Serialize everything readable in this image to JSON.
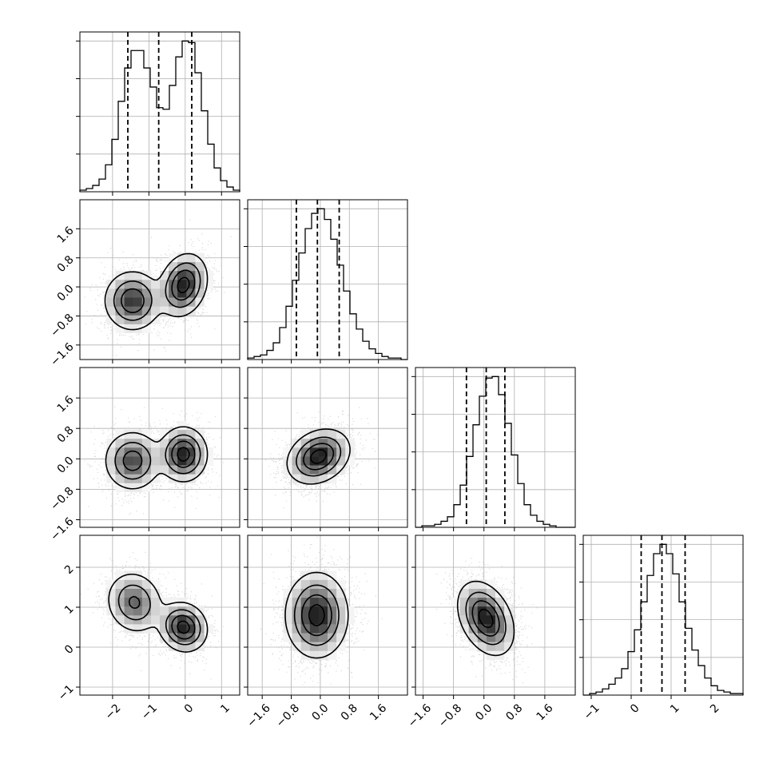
{
  "chart_data": {
    "type": "corner",
    "grid": true,
    "params": [
      {
        "range": [
          -2.9,
          1.5
        ],
        "ticks": [
          -2,
          -1,
          0,
          1
        ],
        "tick_labels": [
          "−2",
          "−1",
          "0",
          "1"
        ]
      },
      {
        "range": [
          -2.0,
          2.4
        ],
        "ticks": [
          -1.6,
          -0.8,
          0.0,
          0.8,
          1.6
        ],
        "tick_labels": [
          "−1.6",
          "−0.8",
          "0.0",
          "0.8",
          "1.6"
        ]
      },
      {
        "range": [
          -1.8,
          2.4
        ],
        "ticks": [
          -1.6,
          -0.8,
          0.0,
          0.8,
          1.6
        ],
        "tick_labels": [
          "−1.6",
          "−0.8",
          "0.0",
          "0.8",
          "1.6"
        ]
      },
      {
        "range": [
          -1.2,
          2.8
        ],
        "ticks": [
          -1,
          0,
          1,
          2
        ],
        "tick_labels": [
          "−1",
          "0",
          "1",
          "2"
        ]
      }
    ],
    "histograms": [
      {
        "quantiles": [
          -1.58,
          -0.73,
          0.18
        ],
        "counts": [
          1,
          2,
          4,
          8,
          17,
          33,
          57,
          78,
          89,
          89,
          78,
          66,
          53,
          52,
          67,
          85,
          95,
          94,
          75,
          51,
          30,
          15,
          7,
          3,
          1
        ]
      },
      {
        "quantiles": [
          -0.66,
          -0.08,
          0.52
        ],
        "counts": [
          1,
          2,
          3,
          6,
          11,
          21,
          35,
          52,
          70,
          86,
          96,
          99,
          92,
          79,
          62,
          45,
          30,
          20,
          12,
          7,
          4,
          2,
          1,
          1,
          0
        ]
      },
      {
        "quantiles": [
          -0.46,
          0.06,
          0.55
        ],
        "counts": [
          0,
          1,
          1,
          2,
          4,
          7,
          15,
          28,
          47,
          68,
          87,
          99,
          100,
          88,
          69,
          48,
          29,
          15,
          8,
          4,
          2,
          1,
          0,
          0,
          0
        ]
      },
      {
        "quantiles": [
          0.25,
          0.77,
          1.35
        ],
        "counts": [
          0,
          1,
          2,
          4,
          7,
          11,
          17,
          28,
          42,
          60,
          77,
          91,
          97,
          91,
          78,
          60,
          43,
          29,
          19,
          11,
          6,
          3,
          2,
          1,
          1
        ]
      }
    ],
    "pairs": [
      {
        "x": 0,
        "y": 1,
        "components": [
          {
            "w": 0.5,
            "mx": -1.45,
            "my": -0.38,
            "sx": 0.38,
            "sy": 0.4,
            "rho": 0.0
          },
          {
            "w": 0.5,
            "mx": -0.05,
            "my": 0.05,
            "sx": 0.32,
            "sy": 0.42,
            "rho": 0.2
          }
        ]
      },
      {
        "x": 0,
        "y": 2,
        "components": [
          {
            "w": 0.5,
            "mx": -1.45,
            "my": -0.05,
            "sx": 0.38,
            "sy": 0.38,
            "rho": 0.0
          },
          {
            "w": 0.5,
            "mx": -0.05,
            "my": 0.12,
            "sx": 0.32,
            "sy": 0.35,
            "rho": 0.0
          }
        ]
      },
      {
        "x": 1,
        "y": 2,
        "components": [
          {
            "w": 1.0,
            "mx": -0.05,
            "my": 0.06,
            "sx": 0.42,
            "sy": 0.35,
            "rho": 0.25
          }
        ]
      },
      {
        "x": 0,
        "y": 3,
        "components": [
          {
            "w": 0.5,
            "mx": -1.4,
            "my": 1.12,
            "sx": 0.38,
            "sy": 0.38,
            "rho": -0.1
          },
          {
            "w": 0.5,
            "mx": -0.05,
            "my": 0.5,
            "sx": 0.32,
            "sy": 0.3,
            "rho": -0.1
          }
        ]
      },
      {
        "x": 1,
        "y": 3,
        "components": [
          {
            "w": 1.0,
            "mx": -0.1,
            "my": 0.8,
            "sx": 0.42,
            "sy": 0.52,
            "rho": 0.0
          }
        ]
      },
      {
        "x": 2,
        "y": 3,
        "components": [
          {
            "w": 1.0,
            "mx": 0.05,
            "my": 0.72,
            "sx": 0.36,
            "sy": 0.45,
            "rho": -0.35
          }
        ]
      }
    ]
  }
}
